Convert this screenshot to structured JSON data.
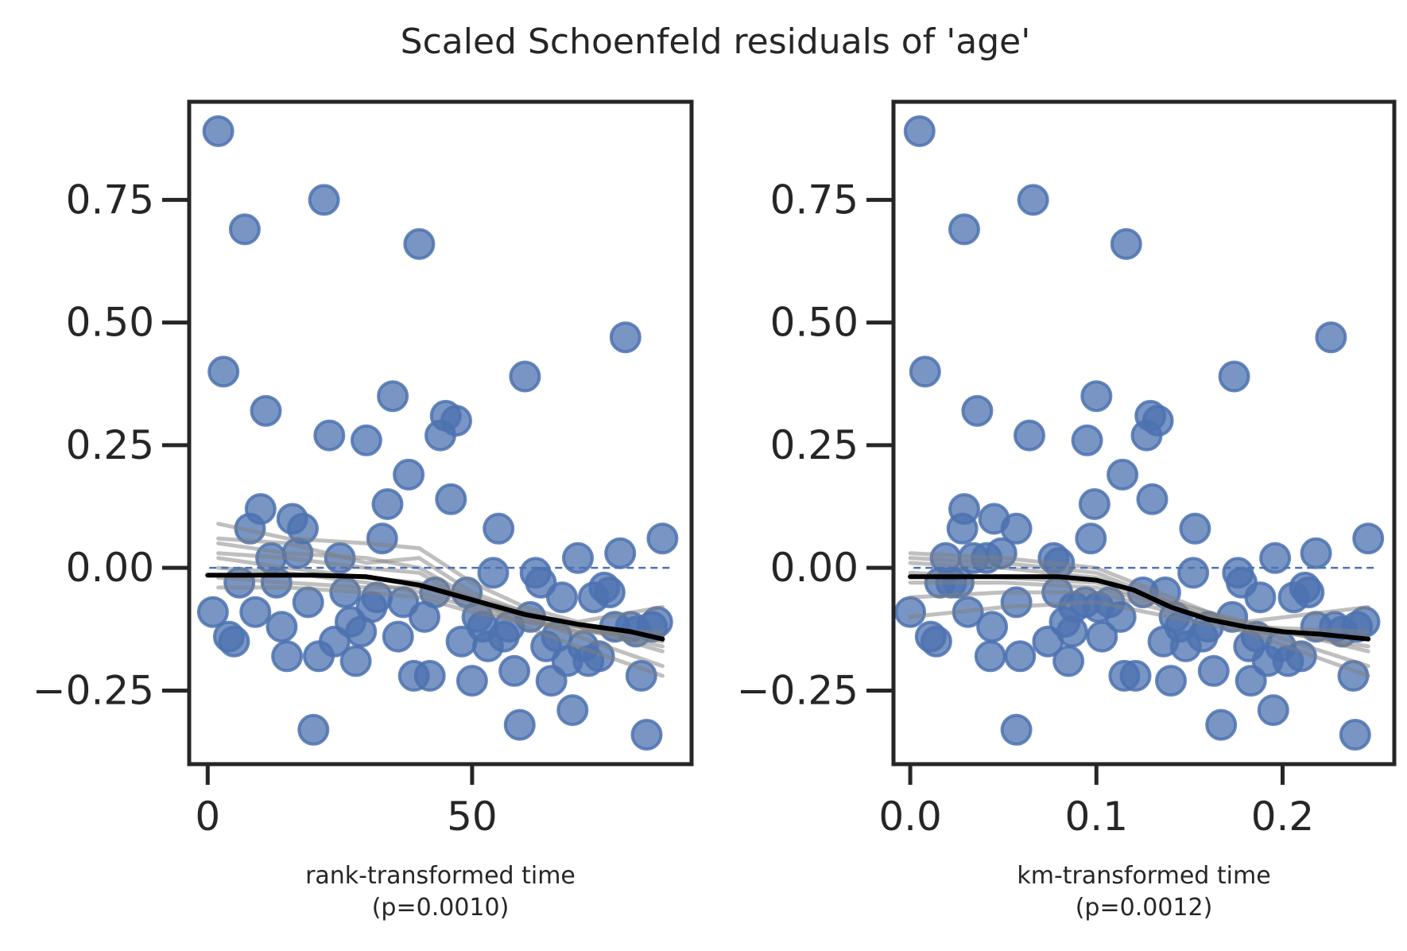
{
  "figure": {
    "title": "Scaled Schoenfeld residuals of 'age'"
  },
  "colors": {
    "point_fill": "#4c72b0",
    "point_edge": "#4c72b0",
    "smoother": "#000000",
    "bootstrap": "#808080",
    "zero_line": "#4c72b0",
    "axis": "#262626"
  },
  "chart_data": [
    {
      "type": "scatter",
      "title": "",
      "xlabel": "rank-transformed time",
      "xlabel_sub": "(p=0.0010)",
      "ylabel": "",
      "xlim": [
        -3.5,
        91.5
      ],
      "ylim": [
        -0.4,
        0.95
      ],
      "xticks": [
        0,
        50
      ],
      "xtick_labels": [
        "0",
        "50"
      ],
      "yticks": [
        -0.25,
        0.0,
        0.25,
        0.5,
        0.75
      ],
      "ytick_labels": [
        "−0.25",
        "0.00",
        "0.25",
        "0.50",
        "0.75"
      ],
      "grid": false,
      "reference_line_y": 0.0,
      "points": [
        [
          1,
          -0.09
        ],
        [
          2,
          0.89
        ],
        [
          3,
          0.4
        ],
        [
          4,
          -0.14
        ],
        [
          5,
          -0.15
        ],
        [
          6,
          -0.03
        ],
        [
          7,
          0.69
        ],
        [
          8,
          0.08
        ],
        [
          9,
          -0.09
        ],
        [
          10,
          0.12
        ],
        [
          11,
          0.32
        ],
        [
          12,
          0.02
        ],
        [
          13,
          -0.03
        ],
        [
          14,
          -0.12
        ],
        [
          15,
          -0.18
        ],
        [
          16,
          0.1
        ],
        [
          17,
          0.03
        ],
        [
          18,
          0.08
        ],
        [
          19,
          -0.07
        ],
        [
          20,
          -0.33
        ],
        [
          21,
          -0.18
        ],
        [
          22,
          0.75
        ],
        [
          23,
          0.27
        ],
        [
          24,
          -0.15
        ],
        [
          25,
          0.02
        ],
        [
          26,
          -0.05
        ],
        [
          27,
          -0.11
        ],
        [
          28,
          -0.19
        ],
        [
          29,
          -0.13
        ],
        [
          30,
          0.26
        ],
        [
          31,
          -0.08
        ],
        [
          32,
          -0.06
        ],
        [
          33,
          0.06
        ],
        [
          34,
          0.13
        ],
        [
          35,
          0.35
        ],
        [
          36,
          -0.14
        ],
        [
          37,
          -0.07
        ],
        [
          38,
          0.19
        ],
        [
          39,
          -0.22
        ],
        [
          40,
          0.66
        ],
        [
          41,
          -0.1
        ],
        [
          42,
          -0.22
        ],
        [
          43,
          -0.05
        ],
        [
          44,
          0.27
        ],
        [
          45,
          0.31
        ],
        [
          46,
          0.14
        ],
        [
          47,
          0.3
        ],
        [
          48,
          -0.15
        ],
        [
          49,
          -0.05
        ],
        [
          50,
          -0.23
        ],
        [
          51,
          -0.1
        ],
        [
          52,
          -0.12
        ],
        [
          53,
          -0.16
        ],
        [
          54,
          -0.01
        ],
        [
          55,
          0.08
        ],
        [
          56,
          -0.14
        ],
        [
          57,
          -0.12
        ],
        [
          58,
          -0.21
        ],
        [
          59,
          -0.32
        ],
        [
          60,
          0.39
        ],
        [
          61,
          -0.1
        ],
        [
          62,
          -0.01
        ],
        [
          63,
          -0.03
        ],
        [
          64,
          -0.16
        ],
        [
          65,
          -0.23
        ],
        [
          66,
          -0.14
        ],
        [
          67,
          -0.06
        ],
        [
          68,
          -0.19
        ],
        [
          69,
          -0.29
        ],
        [
          70,
          0.02
        ],
        [
          71,
          -0.16
        ],
        [
          72,
          -0.19
        ],
        [
          73,
          -0.06
        ],
        [
          74,
          -0.18
        ],
        [
          75,
          -0.04
        ],
        [
          76,
          -0.05
        ],
        [
          77,
          -0.12
        ],
        [
          78,
          0.03
        ],
        [
          79,
          0.47
        ],
        [
          80,
          -0.12
        ],
        [
          81,
          -0.13
        ],
        [
          82,
          -0.22
        ],
        [
          83,
          -0.34
        ],
        [
          84,
          -0.12
        ],
        [
          85,
          -0.11
        ],
        [
          86,
          0.06
        ]
      ],
      "smoother": [
        [
          0,
          -0.015
        ],
        [
          10,
          -0.015
        ],
        [
          20,
          -0.015
        ],
        [
          30,
          -0.018
        ],
        [
          40,
          -0.035
        ],
        [
          50,
          -0.065
        ],
        [
          60,
          -0.095
        ],
        [
          70,
          -0.115
        ],
        [
          80,
          -0.13
        ],
        [
          86,
          -0.145
        ]
      ],
      "bootstrap_lines": [
        [
          [
            2,
            0.09
          ],
          [
            15,
            0.06
          ],
          [
            30,
            0.05
          ],
          [
            40,
            0.04
          ],
          [
            50,
            -0.03
          ],
          [
            60,
            -0.08
          ],
          [
            70,
            -0.11
          ],
          [
            86,
            -0.08
          ]
        ],
        [
          [
            2,
            0.06
          ],
          [
            15,
            0.05
          ],
          [
            30,
            0.01
          ],
          [
            40,
            0.02
          ],
          [
            50,
            -0.05
          ],
          [
            60,
            -0.09
          ],
          [
            70,
            -0.12
          ],
          [
            86,
            -0.15
          ]
        ],
        [
          [
            2,
            0.03
          ],
          [
            15,
            0.02
          ],
          [
            30,
            0.0
          ],
          [
            40,
            -0.01
          ],
          [
            50,
            -0.07
          ],
          [
            60,
            -0.1
          ],
          [
            70,
            -0.14
          ],
          [
            86,
            -0.2
          ]
        ],
        [
          [
            2,
            0.0
          ],
          [
            15,
            -0.01
          ],
          [
            30,
            -0.03
          ],
          [
            40,
            -0.05
          ],
          [
            50,
            -0.08
          ],
          [
            60,
            -0.11
          ],
          [
            70,
            -0.12
          ],
          [
            86,
            -0.17
          ]
        ],
        [
          [
            2,
            -0.04
          ],
          [
            15,
            -0.04
          ],
          [
            30,
            -0.05
          ],
          [
            40,
            -0.06
          ],
          [
            50,
            -0.09
          ],
          [
            60,
            -0.11
          ],
          [
            70,
            -0.13
          ],
          [
            86,
            -0.14
          ]
        ],
        [
          [
            2,
            0.05
          ],
          [
            15,
            0.03
          ],
          [
            30,
            0.02
          ],
          [
            40,
            0.0
          ],
          [
            50,
            -0.06
          ],
          [
            60,
            -0.12
          ],
          [
            70,
            -0.16
          ],
          [
            86,
            -0.22
          ]
        ],
        [
          [
            2,
            -0.02
          ],
          [
            15,
            -0.03
          ],
          [
            30,
            -0.04
          ],
          [
            40,
            -0.04
          ],
          [
            50,
            -0.07
          ],
          [
            60,
            -0.1
          ],
          [
            70,
            -0.13
          ],
          [
            86,
            -0.13
          ]
        ],
        [
          [
            2,
            0.02
          ],
          [
            15,
            0.0
          ],
          [
            30,
            -0.02
          ],
          [
            40,
            -0.03
          ],
          [
            50,
            -0.06
          ],
          [
            60,
            -0.09
          ],
          [
            70,
            -0.12
          ],
          [
            86,
            -0.16
          ]
        ]
      ]
    },
    {
      "type": "scatter",
      "title": "",
      "xlabel": "km-transformed time",
      "xlabel_sub": "(p=0.0012)",
      "ylabel": "",
      "xlim": [
        -0.009,
        0.26
      ],
      "ylim": [
        -0.4,
        0.95
      ],
      "xticks": [
        0.0,
        0.1,
        0.2
      ],
      "xtick_labels": [
        "0.0",
        "0.1",
        "0.2"
      ],
      "yticks": [
        -0.25,
        0.0,
        0.25,
        0.5,
        0.75
      ],
      "ytick_labels": [
        "−0.25",
        "0.00",
        "0.25",
        "0.50",
        "0.75"
      ],
      "grid": false,
      "reference_line_y": 0.0,
      "points": [
        [
          0.0,
          -0.09
        ],
        [
          0.005,
          0.89
        ],
        [
          0.008,
          0.4
        ],
        [
          0.011,
          -0.14
        ],
        [
          0.014,
          -0.15
        ],
        [
          0.016,
          -0.03
        ],
        [
          0.019,
          0.02
        ],
        [
          0.022,
          -0.03
        ],
        [
          0.026,
          -0.03
        ],
        [
          0.028,
          0.08
        ],
        [
          0.029,
          0.12
        ],
        [
          0.029,
          0.69
        ],
        [
          0.031,
          -0.09
        ],
        [
          0.034,
          0.02
        ],
        [
          0.036,
          0.32
        ],
        [
          0.041,
          0.02
        ],
        [
          0.044,
          -0.12
        ],
        [
          0.045,
          0.1
        ],
        [
          0.043,
          -0.18
        ],
        [
          0.049,
          0.03
        ],
        [
          0.057,
          -0.07
        ],
        [
          0.057,
          0.08
        ],
        [
          0.057,
          -0.33
        ],
        [
          0.059,
          -0.18
        ],
        [
          0.064,
          0.27
        ],
        [
          0.066,
          0.75
        ],
        [
          0.074,
          -0.15
        ],
        [
          0.077,
          0.02
        ],
        [
          0.079,
          -0.05
        ],
        [
          0.08,
          0.01
        ],
        [
          0.083,
          -0.11
        ],
        [
          0.085,
          -0.19
        ],
        [
          0.087,
          -0.13
        ],
        [
          0.088,
          -0.08
        ],
        [
          0.094,
          -0.07
        ],
        [
          0.095,
          0.26
        ],
        [
          0.097,
          0.06
        ],
        [
          0.099,
          0.13
        ],
        [
          0.1,
          0.35
        ],
        [
          0.101,
          -0.08
        ],
        [
          0.103,
          -0.14
        ],
        [
          0.107,
          -0.07
        ],
        [
          0.113,
          -0.1
        ],
        [
          0.114,
          0.19
        ],
        [
          0.115,
          -0.22
        ],
        [
          0.116,
          0.66
        ],
        [
          0.121,
          -0.22
        ],
        [
          0.125,
          -0.05
        ],
        [
          0.127,
          0.27
        ],
        [
          0.129,
          0.31
        ],
        [
          0.13,
          0.14
        ],
        [
          0.133,
          0.3
        ],
        [
          0.136,
          -0.15
        ],
        [
          0.137,
          -0.05
        ],
        [
          0.14,
          -0.23
        ],
        [
          0.142,
          -0.1
        ],
        [
          0.145,
          -0.12
        ],
        [
          0.148,
          -0.16
        ],
        [
          0.152,
          -0.01
        ],
        [
          0.153,
          0.08
        ],
        [
          0.157,
          -0.14
        ],
        [
          0.16,
          -0.12
        ],
        [
          0.163,
          -0.21
        ],
        [
          0.167,
          -0.32
        ],
        [
          0.174,
          0.39
        ],
        [
          0.173,
          -0.1
        ],
        [
          0.176,
          -0.01
        ],
        [
          0.178,
          -0.03
        ],
        [
          0.182,
          -0.16
        ],
        [
          0.183,
          -0.23
        ],
        [
          0.186,
          -0.14
        ],
        [
          0.188,
          -0.06
        ],
        [
          0.192,
          -0.19
        ],
        [
          0.195,
          -0.29
        ],
        [
          0.196,
          0.02
        ],
        [
          0.199,
          -0.16
        ],
        [
          0.203,
          -0.19
        ],
        [
          0.206,
          -0.06
        ],
        [
          0.21,
          -0.18
        ],
        [
          0.212,
          -0.04
        ],
        [
          0.214,
          -0.05
        ],
        [
          0.218,
          -0.12
        ],
        [
          0.218,
          0.03
        ],
        [
          0.226,
          0.47
        ],
        [
          0.228,
          -0.12
        ],
        [
          0.232,
          -0.13
        ],
        [
          0.238,
          -0.22
        ],
        [
          0.239,
          -0.34
        ],
        [
          0.24,
          -0.12
        ],
        [
          0.244,
          -0.11
        ],
        [
          0.246,
          0.06
        ]
      ],
      "smoother": [
        [
          0.0,
          -0.018
        ],
        [
          0.04,
          -0.018
        ],
        [
          0.08,
          -0.018
        ],
        [
          0.1,
          -0.025
        ],
        [
          0.12,
          -0.045
        ],
        [
          0.14,
          -0.08
        ],
        [
          0.16,
          -0.105
        ],
        [
          0.18,
          -0.12
        ],
        [
          0.2,
          -0.13
        ],
        [
          0.22,
          -0.135
        ],
        [
          0.246,
          -0.145
        ]
      ],
      "bootstrap_lines": [
        [
          [
            0.0,
            0.03
          ],
          [
            0.05,
            0.02
          ],
          [
            0.1,
            0.0
          ],
          [
            0.14,
            -0.06
          ],
          [
            0.18,
            -0.12
          ],
          [
            0.246,
            -0.2
          ]
        ],
        [
          [
            0.0,
            0.02
          ],
          [
            0.05,
            0.01
          ],
          [
            0.1,
            -0.01
          ],
          [
            0.14,
            -0.07
          ],
          [
            0.18,
            -0.11
          ],
          [
            0.246,
            -0.17
          ]
        ],
        [
          [
            0.0,
            -0.01
          ],
          [
            0.05,
            -0.02
          ],
          [
            0.1,
            -0.03
          ],
          [
            0.14,
            -0.08
          ],
          [
            0.18,
            -0.12
          ],
          [
            0.246,
            -0.13
          ]
        ],
        [
          [
            0.0,
            -0.06
          ],
          [
            0.05,
            -0.05
          ],
          [
            0.1,
            -0.05
          ],
          [
            0.14,
            -0.09
          ],
          [
            0.18,
            -0.11
          ],
          [
            0.246,
            -0.08
          ]
        ],
        [
          [
            0.0,
            -0.1
          ],
          [
            0.05,
            -0.08
          ],
          [
            0.1,
            -0.07
          ],
          [
            0.14,
            -0.1
          ],
          [
            0.18,
            -0.13
          ],
          [
            0.246,
            -0.14
          ]
        ],
        [
          [
            0.0,
            0.01
          ],
          [
            0.05,
            0.0
          ],
          [
            0.1,
            -0.02
          ],
          [
            0.14,
            -0.07
          ],
          [
            0.18,
            -0.13
          ],
          [
            0.246,
            -0.22
          ]
        ],
        [
          [
            0.0,
            -0.03
          ],
          [
            0.05,
            -0.03
          ],
          [
            0.1,
            -0.04
          ],
          [
            0.14,
            -0.08
          ],
          [
            0.18,
            -0.12
          ],
          [
            0.246,
            -0.16
          ]
        ]
      ]
    }
  ]
}
